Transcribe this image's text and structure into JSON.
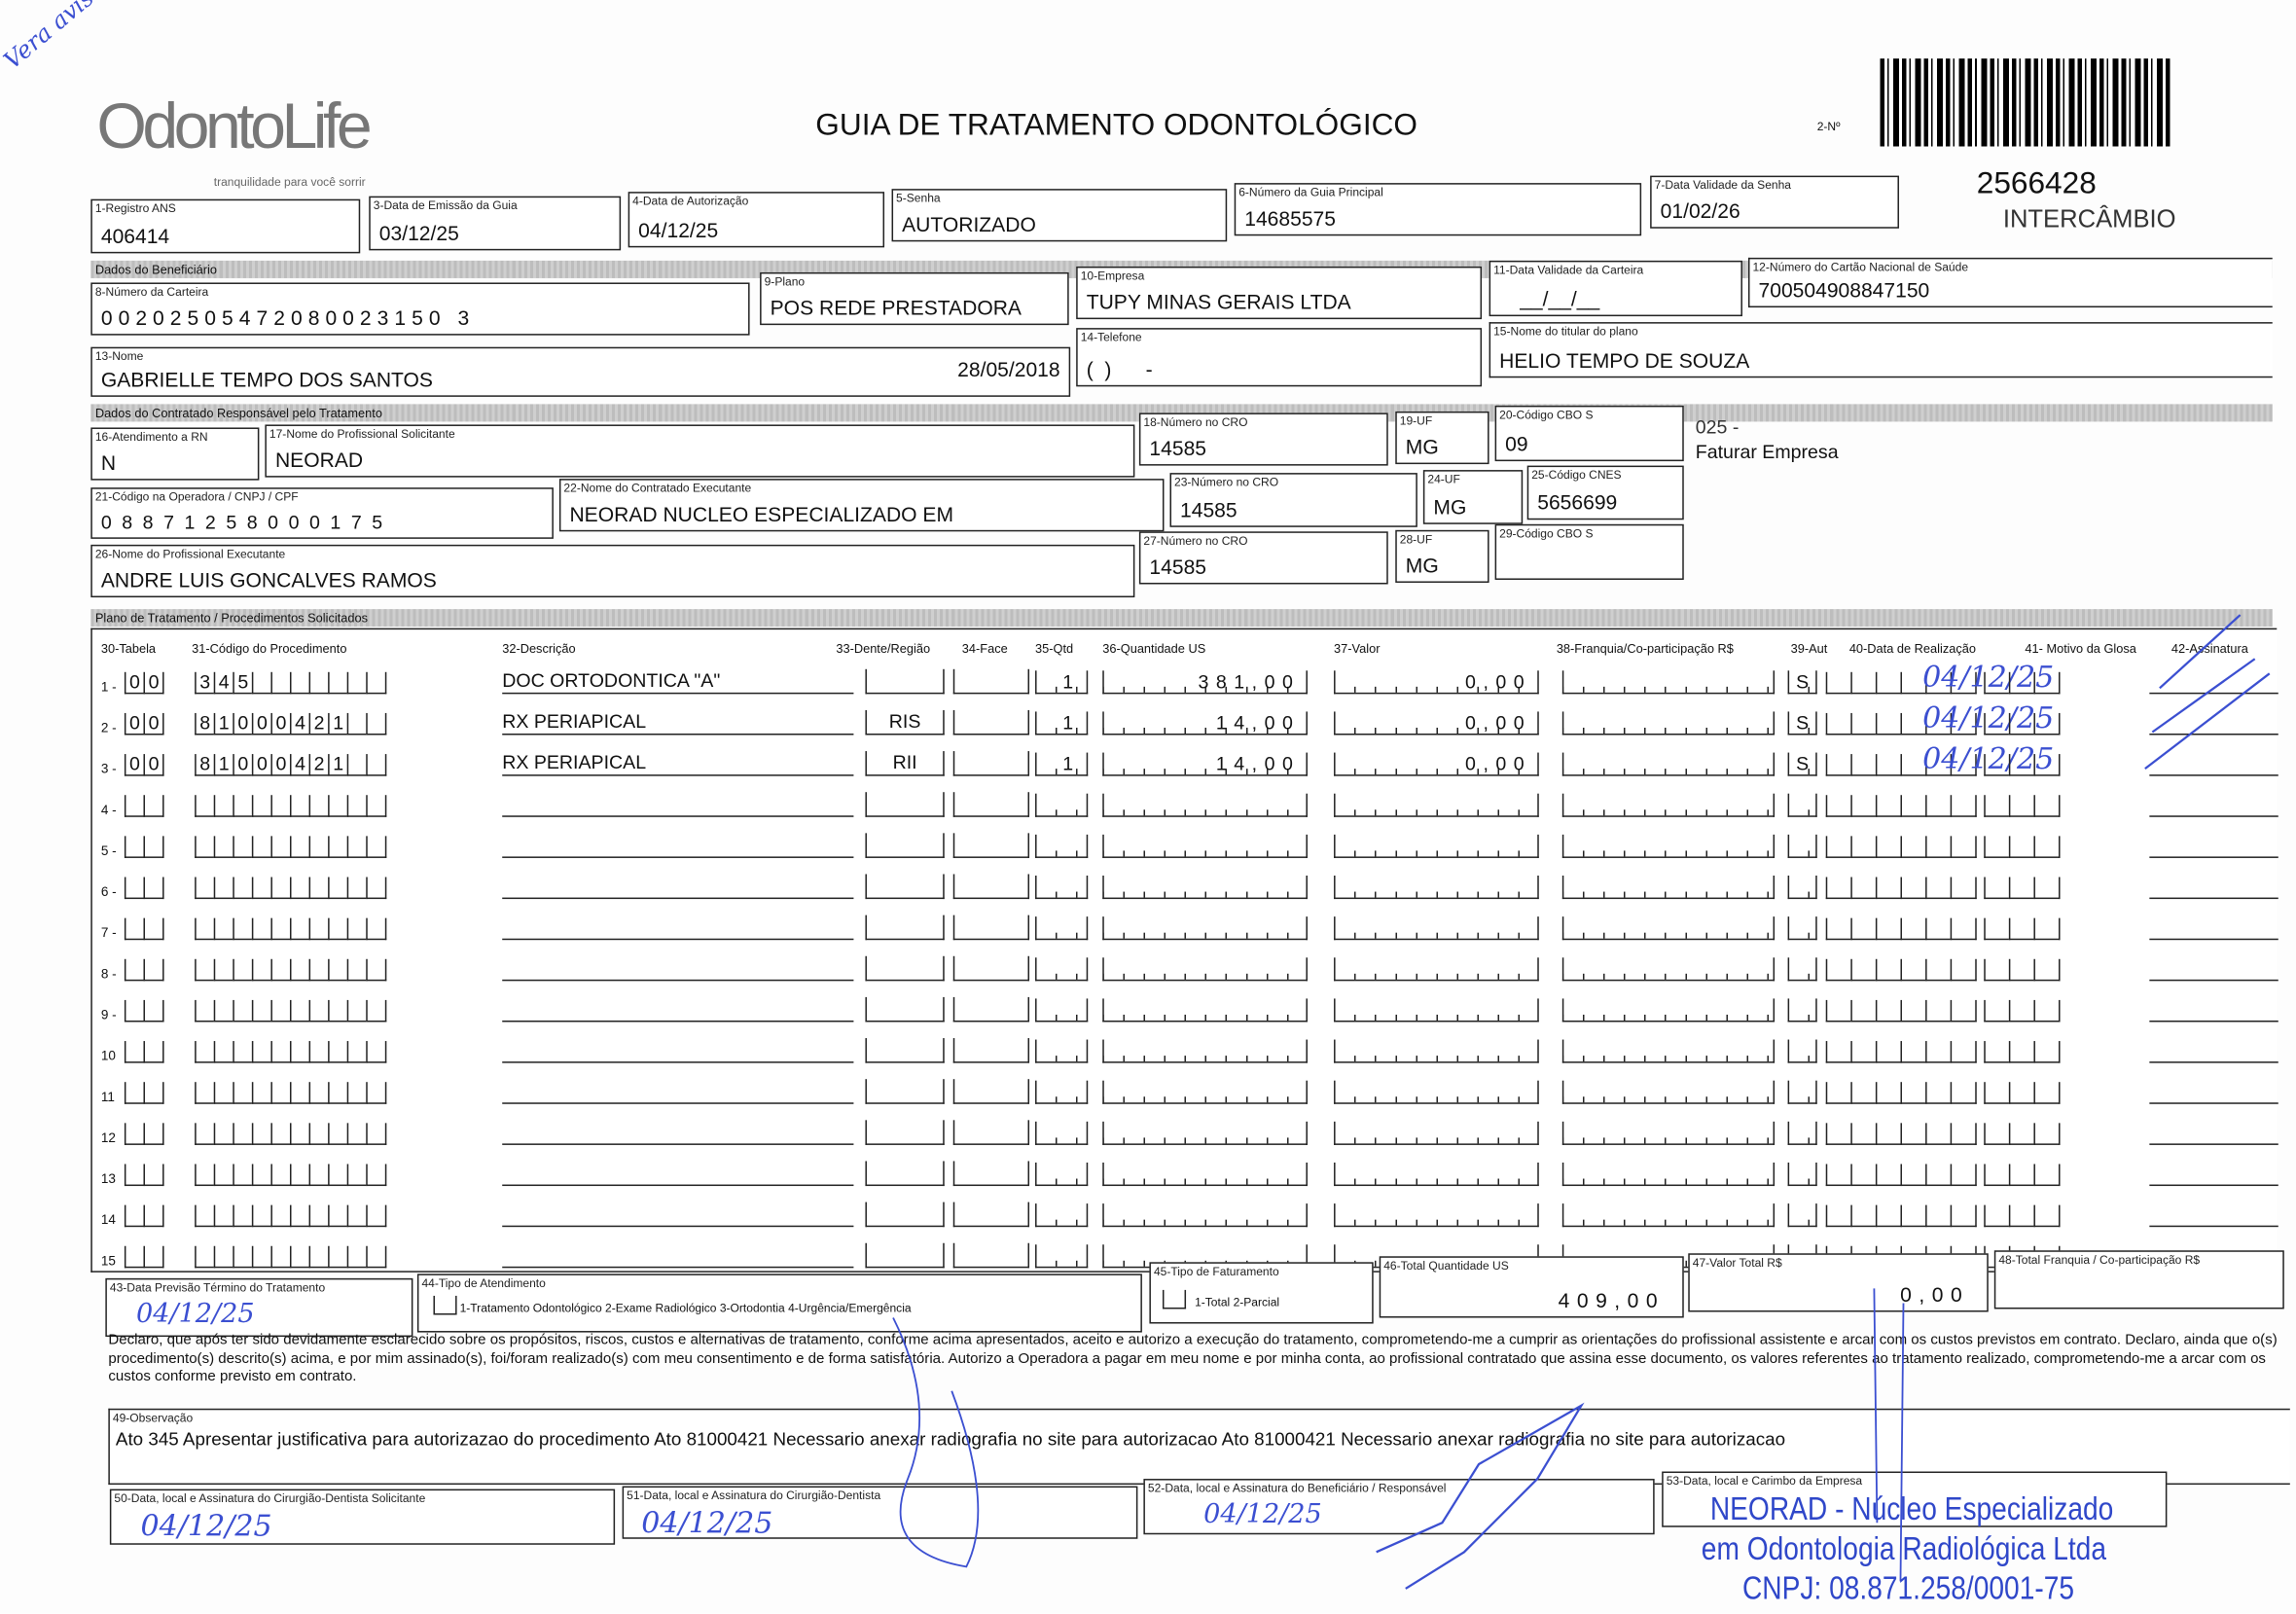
{
  "logo": {
    "brand": "OdontoLife",
    "tagline": "tranquilidade para você sorrir"
  },
  "handwritten_corner": "Vera avisou",
  "title": "GUIA DE TRATAMENTO ODONTOLÓGICO",
  "guide_number_label": "2-Nº",
  "guide_number": "2566428",
  "guide_type": "INTERCÂMBIO",
  "header": {
    "registro_ans": {
      "label": "1-Registro ANS",
      "value": "406414"
    },
    "data_emissao": {
      "label": "3-Data de Emissão da Guia",
      "value": "03/12/25"
    },
    "data_autorizacao": {
      "label": "4-Data de Autorização",
      "value": "04/12/25"
    },
    "senha": {
      "label": "5-Senha",
      "value": "AUTORIZADO"
    },
    "guia_principal": {
      "label": "6-Número da Guia Principal",
      "value": "14685575"
    },
    "validade_senha": {
      "label": "7-Data Validade da Senha",
      "value": "01/02/26"
    }
  },
  "beneficiario": {
    "section": "Dados do Beneficiário",
    "carteira": {
      "label": "8-Número da Carteira",
      "value": "00202505472080023150 3"
    },
    "plano": {
      "label": "9-Plano",
      "value": "POS REDE PRESTADORA"
    },
    "empresa": {
      "label": "10-Empresa",
      "value": "TUPY MINAS GERAIS LTDA"
    },
    "validade_carteira": {
      "label": "11-Data Validade da Carteira",
      "value": "__/__/__"
    },
    "cns": {
      "label": "12-Número do Cartão Nacional de Saúde",
      "value": "700504908847150"
    },
    "nome": {
      "label": "13-Nome",
      "value": "GABRIELLE TEMPO DOS SANTOS",
      "birth": "28/05/2018"
    },
    "telefone": {
      "label": "14-Telefone",
      "value": "(  )      -     "
    },
    "titular": {
      "label": "15-Nome do titular do plano",
      "value": "HELIO TEMPO DE SOUZA"
    }
  },
  "contratado": {
    "section": "Dados do Contratado Responsável pelo Tratamento",
    "rn": {
      "label": "16-Atendimento a RN",
      "value": "N"
    },
    "prof_solicitante": {
      "label": "17-Nome do Profissional Solicitante",
      "value": "NEORAD"
    },
    "cro18": {
      "label": "18-Número no CRO",
      "value": "14585"
    },
    "uf19": {
      "label": "19-UF",
      "value": "MG"
    },
    "cbo20": {
      "label": "20-Código CBO S",
      "value": "09"
    },
    "faturamento_note": {
      "code": "025 -",
      "text": "Faturar Empresa"
    },
    "cnpj": {
      "label": "21-Código na Operadora / CNPJ / CPF",
      "value": "08871258000175"
    },
    "executante": {
      "label": "22-Nome do Contratado Executante",
      "value": "NEORAD NUCLEO ESPECIALIZADO EM"
    },
    "cro23": {
      "label": "23-Número no CRO",
      "value": "14585"
    },
    "uf24": {
      "label": "24-UF",
      "value": "MG"
    },
    "cnes": {
      "label": "25-Código CNES",
      "value": "5656699"
    },
    "prof_executante": {
      "label": "26-Nome do Profissional Executante",
      "value": "ANDRE LUIS GONCALVES RAMOS"
    },
    "cro27": {
      "label": "27-Número no CRO",
      "value": "14585"
    },
    "uf28": {
      "label": "28-UF",
      "value": "MG"
    },
    "cbo29": {
      "label": "29-Código CBO S",
      "value": ""
    }
  },
  "plano": {
    "section": "Plano de Tratamento / Procedimentos Solicitados",
    "columns": [
      "30-Tabela",
      "31-Código do Procedimento",
      "32-Descrição",
      "33-Dente/Região",
      "34-Face",
      "35-Qtd",
      "36-Quantidade US",
      "37-Valor",
      "38-Franquia/Co-participação R$",
      "39-Aut",
      "40-Data de Realização",
      "41- Motivo da Glosa",
      "42-Assinatura"
    ],
    "rows": [
      {
        "n": "1 -",
        "tabela": "00",
        "codigo": "345",
        "descricao": "DOC ORTODONTICA \"A\"",
        "dente": "",
        "face": "",
        "qtd": "1",
        "quant_us": "381,00",
        "valor": "0,00",
        "franquia": "",
        "aut": "S",
        "data_realizacao": "04/12/25"
      },
      {
        "n": "2 -",
        "tabela": "00",
        "codigo": "81000421",
        "descricao": "RX PERIAPICAL",
        "dente": "RIS",
        "face": "",
        "qtd": "1",
        "quant_us": "14,00",
        "valor": "0,00",
        "franquia": "",
        "aut": "S",
        "data_realizacao": "04/12/25"
      },
      {
        "n": "3 -",
        "tabela": "00",
        "codigo": "81000421",
        "descricao": "RX PERIAPICAL",
        "dente": "RII",
        "face": "",
        "qtd": "1",
        "quant_us": "14,00",
        "valor": "0,00",
        "franquia": "",
        "aut": "S",
        "data_realizacao": "04/12/25"
      },
      {
        "n": "4 -"
      },
      {
        "n": "5 -"
      },
      {
        "n": "6 -"
      },
      {
        "n": "7 -"
      },
      {
        "n": "8 -"
      },
      {
        "n": "9 -"
      },
      {
        "n": "10"
      },
      {
        "n": "11"
      },
      {
        "n": "12"
      },
      {
        "n": "13"
      },
      {
        "n": "14"
      },
      {
        "n": "15"
      }
    ]
  },
  "footer": {
    "previsao": {
      "label": "43-Data Previsão Término do Tratamento",
      "handwritten": "04/12/25"
    },
    "tipo_atendimento": {
      "label": "44-Tipo de Atendimento",
      "options": "1-Tratamento Odontológico  2-Exame Radiológico  3-Ortodontia  4-Urgência/Emergência"
    },
    "tipo_faturamento": {
      "label": "45-Tipo de Faturamento",
      "options": "1-Total  2-Parcial"
    },
    "total_us": {
      "label": "46-Total Quantidade US",
      "value": "409,00"
    },
    "valor_total": {
      "label": "47-Valor Total R$",
      "value": "0,00"
    },
    "total_franquia": {
      "label": "48-Total Franquia / Co-participação R$",
      "value": ""
    },
    "declaration": "Declaro, que após ter sido devidamente esclarecido sobre os propósitos, riscos, custos e alternativas de tratamento, conforme acima apresentados, aceito e autorizo a execução do tratamento, comprometendo-me a cumprir as orientações do profissional assistente e arcar com os custos previstos em contrato. Declaro, ainda que o(s) procedimento(s) descrito(s) acima, e por mim assinado(s), foi/foram realizado(s) com meu consentimento e de forma satisfatória. Autorizo a Operadora a pagar em meu nome e por minha conta, ao profissional contratado que assina esse documento, os valores referentes ao tratamento realizado, comprometendo-me a arcar com os custos conforme previsto em contrato.",
    "observacao": {
      "label": "49-Observação",
      "value": "Ato 345 Apresentar justificativa para autorizazao do procedimento   Ato 81000421 Necessario anexar radiografia no site para autorizacao   Ato 81000421 Necessario anexar radiografia no site para autorizacao"
    },
    "sig50": {
      "label": "50-Data, local e Assinatura do Cirurgião-Dentista Solicitante",
      "handwritten": "04/12/25"
    },
    "sig51": {
      "label": "51-Data, local e Assinatura do Cirurgião-Dentista",
      "handwritten": "04/12/25"
    },
    "sig52": {
      "label": "52-Data, local e Assinatura do Beneficiário / Responsável",
      "handwritten": "04/12/25"
    },
    "sig53": {
      "label": "53-Data, local e Carimbo da Empresa"
    }
  },
  "stamp": {
    "line1": "NEORAD - Núcleo Especializado",
    "line2": "em Odontologia Radiológica Ltda",
    "line3": "CNPJ: 08.871.258/0001-75"
  },
  "colors": {
    "ink": "#111111",
    "pen": "#3b4fd1",
    "stamp": "#2f47c9",
    "section_bar": "#c6c6c6"
  }
}
